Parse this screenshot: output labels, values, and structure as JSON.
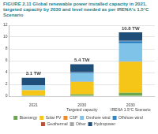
{
  "chart_data": {
    "type": "bar",
    "title": "FIGURE 2.11 Global renewable power installed capacity in 2021, targeted capacity by 2030 and level needed as per IRENA's 1.5°C Scenario",
    "categories": [
      [
        "2021"
      ],
      [
        "2030",
        "Targeted capacity"
      ],
      [
        "2030",
        "IRENA 1.5°C Scenario"
      ]
    ],
    "stacked": true,
    "series": [
      {
        "name": "Bioenergy",
        "color": "#6aa84f",
        "values": [
          0.14,
          0.3,
          0.57
        ]
      },
      {
        "name": "Solar PV",
        "color": "#f5c518",
        "values": [
          0.85,
          2.1,
          5.22
        ]
      },
      {
        "name": "CSP",
        "color": "#f08a24",
        "values": [
          0.01,
          0.03,
          0.08
        ]
      },
      {
        "name": "Onshore wind",
        "color": "#7fc4e8",
        "values": [
          0.77,
          1.4,
          3.04
        ]
      },
      {
        "name": "Offshore wind",
        "color": "#2f86c6",
        "values": [
          0.06,
          0.2,
          0.38
        ]
      },
      {
        "name": "Geothermal",
        "color": "#b5533c",
        "values": [
          0.02,
          0.03,
          0.06
        ]
      },
      {
        "name": "Other",
        "color": "#a6a6a6",
        "values": [
          0.02,
          0.04,
          0.02
        ]
      },
      {
        "name": "Hydropower",
        "color": "#1f4e79",
        "values": [
          1.23,
          1.3,
          1.43
        ]
      }
    ],
    "annotations": [
      {
        "category": [
          "2021"
        ],
        "value": 3.1,
        "text": "3.1 TW"
      },
      {
        "category": [
          "2030",
          "Targeted capacity"
        ],
        "value": 5.4,
        "text": "5.4 TW"
      },
      {
        "category": [
          "2030",
          "IRENA 1.5°C Scenario"
        ],
        "value": 10.8,
        "text": "10.8 TW"
      }
    ],
    "ylim": [
      0,
      12
    ],
    "yticks": [
      0,
      2,
      4,
      6,
      8,
      10,
      12
    ],
    "grid": true,
    "legend": "bottom"
  }
}
